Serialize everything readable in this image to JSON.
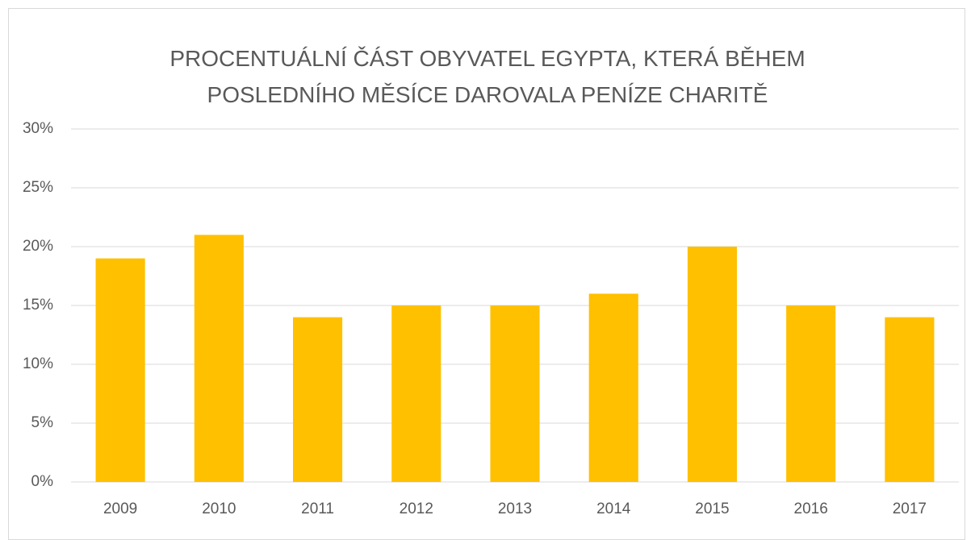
{
  "chart_data": {
    "type": "bar",
    "title": "PROCENTUÁLNÍ ČÁST OBYVATEL EGYPTA, KTERÁ BĚHEM POSLEDNÍHO MĚSÍCE DAROVALA PENÍZE CHARITĚ",
    "categories": [
      "2009",
      "2010",
      "2011",
      "2012",
      "2013",
      "2014",
      "2015",
      "2016",
      "2017"
    ],
    "values": [
      19,
      21,
      14,
      15,
      15,
      16,
      20,
      15,
      14
    ],
    "color": "#ffc000",
    "ylim": [
      0,
      30
    ],
    "yticks": [
      {
        "value": 0,
        "label": "0%"
      },
      {
        "value": 5,
        "label": "5%"
      },
      {
        "value": 10,
        "label": "10%"
      },
      {
        "value": 15,
        "label": "15%"
      },
      {
        "value": 20,
        "label": "20%"
      },
      {
        "value": 25,
        "label": "25%"
      },
      {
        "value": 30,
        "label": "30%"
      }
    ],
    "grid": true
  }
}
